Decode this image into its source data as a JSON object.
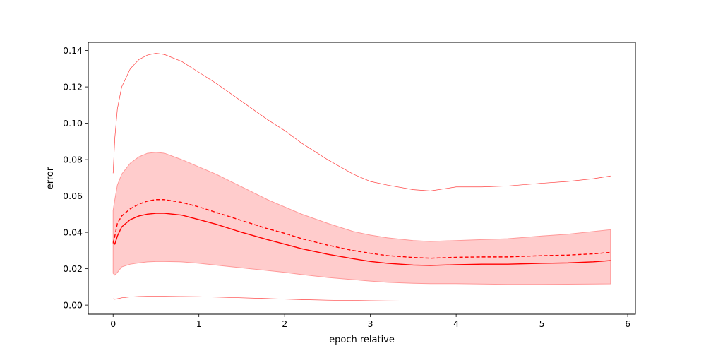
{
  "chart_data": {
    "type": "line",
    "title": "",
    "xlabel": "epoch relative",
    "ylabel": "error",
    "xlim": [
      -0.29,
      6.09
    ],
    "ylim": [
      -0.005,
      0.1445
    ],
    "xticks": [
      0,
      1,
      2,
      3,
      4,
      5,
      6
    ],
    "yticks": [
      0.0,
      0.02,
      0.04,
      0.06,
      0.08,
      0.1,
      0.12,
      0.14
    ],
    "ytick_labels": [
      "0.00",
      "0.02",
      "0.04",
      "0.06",
      "0.08",
      "0.10",
      "0.12",
      "0.14"
    ],
    "grid": false,
    "legend": "none",
    "colors": {
      "line": "#ff0000",
      "band": "#ffcccc",
      "band_edge": "#ff9999"
    },
    "x": [
      0,
      0.02,
      0.05,
      0.1,
      0.2,
      0.3,
      0.4,
      0.5,
      0.6,
      0.8,
      1.0,
      1.2,
      1.5,
      1.8,
      2.0,
      2.2,
      2.5,
      2.8,
      3.0,
      3.2,
      3.5,
      3.7,
      4.0,
      4.3,
      4.6,
      5.0,
      5.3,
      5.6,
      5.8
    ],
    "series": [
      {
        "role": "median",
        "style": "solid",
        "values": [
          0.035,
          0.0335,
          0.038,
          0.043,
          0.047,
          0.049,
          0.05,
          0.0505,
          0.0505,
          0.0495,
          0.047,
          0.0445,
          0.04,
          0.036,
          0.0335,
          0.031,
          0.028,
          0.0255,
          0.024,
          0.023,
          0.022,
          0.0218,
          0.0222,
          0.0225,
          0.0225,
          0.023,
          0.0232,
          0.0238,
          0.0245
        ]
      },
      {
        "role": "mean",
        "style": "dashed",
        "values": [
          0.034,
          0.038,
          0.045,
          0.049,
          0.053,
          0.0555,
          0.0572,
          0.058,
          0.058,
          0.0565,
          0.054,
          0.051,
          0.0465,
          0.042,
          0.0395,
          0.0365,
          0.033,
          0.03,
          0.0285,
          0.0272,
          0.0262,
          0.0258,
          0.0263,
          0.0265,
          0.0265,
          0.0272,
          0.0275,
          0.0282,
          0.029
        ]
      },
      {
        "role": "band_upper",
        "style": "fill",
        "values": [
          0.052,
          0.058,
          0.066,
          0.072,
          0.078,
          0.0815,
          0.0835,
          0.084,
          0.0835,
          0.08,
          0.076,
          0.072,
          0.065,
          0.058,
          0.054,
          0.05,
          0.045,
          0.0405,
          0.0385,
          0.037,
          0.0355,
          0.035,
          0.0355,
          0.036,
          0.0365,
          0.038,
          0.039,
          0.0405,
          0.0415
        ]
      },
      {
        "role": "band_lower",
        "style": "fill",
        "values": [
          0.0175,
          0.0165,
          0.018,
          0.021,
          0.0225,
          0.0232,
          0.0238,
          0.024,
          0.024,
          0.0238,
          0.023,
          0.022,
          0.0205,
          0.019,
          0.018,
          0.0168,
          0.0152,
          0.014,
          0.0132,
          0.0125,
          0.012,
          0.0118,
          0.0118,
          0.0116,
          0.0114,
          0.0114,
          0.0115,
          0.0116,
          0.0117
        ]
      },
      {
        "role": "max",
        "style": "thin",
        "values": [
          0.0725,
          0.092,
          0.108,
          0.12,
          0.13,
          0.135,
          0.1375,
          0.1385,
          0.1378,
          0.134,
          0.128,
          0.122,
          0.112,
          0.102,
          0.096,
          0.089,
          0.08,
          0.072,
          0.068,
          0.066,
          0.0635,
          0.0628,
          0.065,
          0.065,
          0.0655,
          0.067,
          0.068,
          0.0695,
          0.071
        ]
      },
      {
        "role": "min",
        "style": "thin",
        "values": [
          0.0035,
          0.0032,
          0.0035,
          0.004,
          0.0045,
          0.0047,
          0.0048,
          0.0048,
          0.0048,
          0.0047,
          0.0046,
          0.0044,
          0.004,
          0.0036,
          0.0033,
          0.003,
          0.0027,
          0.0025,
          0.0024,
          0.0023,
          0.0022,
          0.0022,
          0.0022,
          0.0022,
          0.0022,
          0.0022,
          0.0022,
          0.0022,
          0.0022
        ]
      }
    ]
  }
}
